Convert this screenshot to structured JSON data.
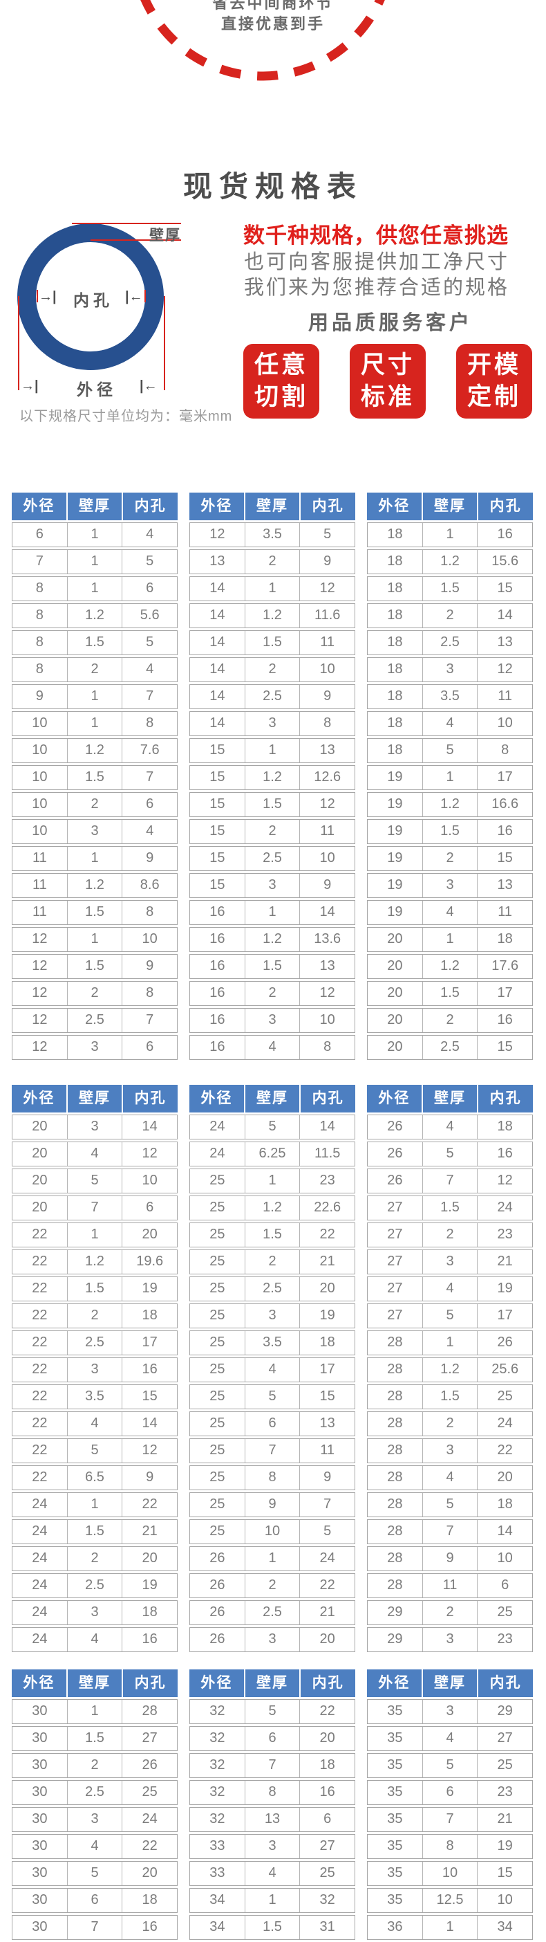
{
  "banner": {
    "line1": "省去中间商环节",
    "line2": "直接优惠到手"
  },
  "title": "现货规格表",
  "diagram": {
    "wall_label": "壁厚",
    "inner_label": "内孔",
    "outer_label": "外径",
    "arrow_left": "→|",
    "arrow_right": "|←"
  },
  "unit_note": "以下规格尺寸单位均为：毫米mm",
  "promo": {
    "headline": "数千种规格，供您任意挑选",
    "sub1": "也可向客服提供加工净尺寸",
    "sub2": "我们来为您推荐合适的规格",
    "slogan": "用品质服务客户",
    "badges": [
      {
        "line1": "任意",
        "line2": "切割"
      },
      {
        "line1": "尺寸",
        "line2": "标准"
      },
      {
        "line1": "开模",
        "line2": "定制"
      }
    ]
  },
  "table": {
    "headers": [
      "外径",
      "壁厚",
      "内孔"
    ],
    "sections": [
      {
        "columns": [
          [
            [
              "6",
              "1",
              "4"
            ],
            [
              "7",
              "1",
              "5"
            ],
            [
              "8",
              "1",
              "6"
            ],
            [
              "8",
              "1.2",
              "5.6"
            ],
            [
              "8",
              "1.5",
              "5"
            ],
            [
              "8",
              "2",
              "4"
            ],
            [
              "9",
              "1",
              "7"
            ],
            [
              "10",
              "1",
              "8"
            ],
            [
              "10",
              "1.2",
              "7.6"
            ],
            [
              "10",
              "1.5",
              "7"
            ],
            [
              "10",
              "2",
              "6"
            ],
            [
              "10",
              "3",
              "4"
            ],
            [
              "11",
              "1",
              "9"
            ],
            [
              "11",
              "1.2",
              "8.6"
            ],
            [
              "11",
              "1.5",
              "8"
            ],
            [
              "12",
              "1",
              "10"
            ],
            [
              "12",
              "1.5",
              "9"
            ],
            [
              "12",
              "2",
              "8"
            ],
            [
              "12",
              "2.5",
              "7"
            ],
            [
              "12",
              "3",
              "6"
            ]
          ],
          [
            [
              "12",
              "3.5",
              "5"
            ],
            [
              "13",
              "2",
              "9"
            ],
            [
              "14",
              "1",
              "12"
            ],
            [
              "14",
              "1.2",
              "11.6"
            ],
            [
              "14",
              "1.5",
              "11"
            ],
            [
              "14",
              "2",
              "10"
            ],
            [
              "14",
              "2.5",
              "9"
            ],
            [
              "14",
              "3",
              "8"
            ],
            [
              "15",
              "1",
              "13"
            ],
            [
              "15",
              "1.2",
              "12.6"
            ],
            [
              "15",
              "1.5",
              "12"
            ],
            [
              "15",
              "2",
              "11"
            ],
            [
              "15",
              "2.5",
              "10"
            ],
            [
              "15",
              "3",
              "9"
            ],
            [
              "16",
              "1",
              "14"
            ],
            [
              "16",
              "1.2",
              "13.6"
            ],
            [
              "16",
              "1.5",
              "13"
            ],
            [
              "16",
              "2",
              "12"
            ],
            [
              "16",
              "3",
              "10"
            ],
            [
              "16",
              "4",
              "8"
            ]
          ],
          [
            [
              "18",
              "1",
              "16"
            ],
            [
              "18",
              "1.2",
              "15.6"
            ],
            [
              "18",
              "1.5",
              "15"
            ],
            [
              "18",
              "2",
              "14"
            ],
            [
              "18",
              "2.5",
              "13"
            ],
            [
              "18",
              "3",
              "12"
            ],
            [
              "18",
              "3.5",
              "11"
            ],
            [
              "18",
              "4",
              "10"
            ],
            [
              "18",
              "5",
              "8"
            ],
            [
              "19",
              "1",
              "17"
            ],
            [
              "19",
              "1.2",
              "16.6"
            ],
            [
              "19",
              "1.5",
              "16"
            ],
            [
              "19",
              "2",
              "15"
            ],
            [
              "19",
              "3",
              "13"
            ],
            [
              "19",
              "4",
              "11"
            ],
            [
              "20",
              "1",
              "18"
            ],
            [
              "20",
              "1.2",
              "17.6"
            ],
            [
              "20",
              "1.5",
              "17"
            ],
            [
              "20",
              "2",
              "16"
            ],
            [
              "20",
              "2.5",
              "15"
            ]
          ]
        ]
      },
      {
        "columns": [
          [
            [
              "20",
              "3",
              "14"
            ],
            [
              "20",
              "4",
              "12"
            ],
            [
              "20",
              "5",
              "10"
            ],
            [
              "20",
              "7",
              "6"
            ],
            [
              "22",
              "1",
              "20"
            ],
            [
              "22",
              "1.2",
              "19.6"
            ],
            [
              "22",
              "1.5",
              "19"
            ],
            [
              "22",
              "2",
              "18"
            ],
            [
              "22",
              "2.5",
              "17"
            ],
            [
              "22",
              "3",
              "16"
            ],
            [
              "22",
              "3.5",
              "15"
            ],
            [
              "22",
              "4",
              "14"
            ],
            [
              "22",
              "5",
              "12"
            ],
            [
              "22",
              "6.5",
              "9"
            ],
            [
              "24",
              "1",
              "22"
            ],
            [
              "24",
              "1.5",
              "21"
            ],
            [
              "24",
              "2",
              "20"
            ],
            [
              "24",
              "2.5",
              "19"
            ],
            [
              "24",
              "3",
              "18"
            ],
            [
              "24",
              "4",
              "16"
            ]
          ],
          [
            [
              "24",
              "5",
              "14"
            ],
            [
              "24",
              "6.25",
              "11.5"
            ],
            [
              "25",
              "1",
              "23"
            ],
            [
              "25",
              "1.2",
              "22.6"
            ],
            [
              "25",
              "1.5",
              "22"
            ],
            [
              "25",
              "2",
              "21"
            ],
            [
              "25",
              "2.5",
              "20"
            ],
            [
              "25",
              "3",
              "19"
            ],
            [
              "25",
              "3.5",
              "18"
            ],
            [
              "25",
              "4",
              "17"
            ],
            [
              "25",
              "5",
              "15"
            ],
            [
              "25",
              "6",
              "13"
            ],
            [
              "25",
              "7",
              "11"
            ],
            [
              "25",
              "8",
              "9"
            ],
            [
              "25",
              "9",
              "7"
            ],
            [
              "25",
              "10",
              "5"
            ],
            [
              "26",
              "1",
              "24"
            ],
            [
              "26",
              "2",
              "22"
            ],
            [
              "26",
              "2.5",
              "21"
            ],
            [
              "26",
              "3",
              "20"
            ]
          ],
          [
            [
              "26",
              "4",
              "18"
            ],
            [
              "26",
              "5",
              "16"
            ],
            [
              "26",
              "7",
              "12"
            ],
            [
              "27",
              "1.5",
              "24"
            ],
            [
              "27",
              "2",
              "23"
            ],
            [
              "27",
              "3",
              "21"
            ],
            [
              "27",
              "4",
              "19"
            ],
            [
              "27",
              "5",
              "17"
            ],
            [
              "28",
              "1",
              "26"
            ],
            [
              "28",
              "1.2",
              "25.6"
            ],
            [
              "28",
              "1.5",
              "25"
            ],
            [
              "28",
              "2",
              "24"
            ],
            [
              "28",
              "3",
              "22"
            ],
            [
              "28",
              "4",
              "20"
            ],
            [
              "28",
              "5",
              "18"
            ],
            [
              "28",
              "7",
              "14"
            ],
            [
              "28",
              "9",
              "10"
            ],
            [
              "28",
              "11",
              "6"
            ],
            [
              "29",
              "2",
              "25"
            ],
            [
              "29",
              "3",
              "23"
            ]
          ]
        ]
      },
      {
        "columns": [
          [
            [
              "30",
              "1",
              "28"
            ],
            [
              "30",
              "1.5",
              "27"
            ],
            [
              "30",
              "2",
              "26"
            ],
            [
              "30",
              "2.5",
              "25"
            ],
            [
              "30",
              "3",
              "24"
            ],
            [
              "30",
              "4",
              "22"
            ],
            [
              "30",
              "5",
              "20"
            ],
            [
              "30",
              "6",
              "18"
            ],
            [
              "30",
              "7",
              "16"
            ]
          ],
          [
            [
              "32",
              "5",
              "22"
            ],
            [
              "32",
              "6",
              "20"
            ],
            [
              "32",
              "7",
              "18"
            ],
            [
              "32",
              "8",
              "16"
            ],
            [
              "32",
              "13",
              "6"
            ],
            [
              "33",
              "3",
              "27"
            ],
            [
              "33",
              "4",
              "25"
            ],
            [
              "34",
              "1",
              "32"
            ],
            [
              "34",
              "1.5",
              "31"
            ]
          ],
          [
            [
              "35",
              "3",
              "29"
            ],
            [
              "35",
              "4",
              "27"
            ],
            [
              "35",
              "5",
              "25"
            ],
            [
              "35",
              "6",
              "23"
            ],
            [
              "35",
              "7",
              "21"
            ],
            [
              "35",
              "8",
              "19"
            ],
            [
              "35",
              "10",
              "15"
            ],
            [
              "35",
              "12.5",
              "10"
            ],
            [
              "36",
              "1",
              "34"
            ]
          ]
        ]
      }
    ]
  },
  "colors": {
    "accent_red": "#d7241e",
    "headline_red": "#e0201c",
    "header_blue": "#4d7fc1",
    "ring_blue": "#27508f",
    "cell_text": "#7c7c7c",
    "border_gray": "#a6a6a6"
  }
}
